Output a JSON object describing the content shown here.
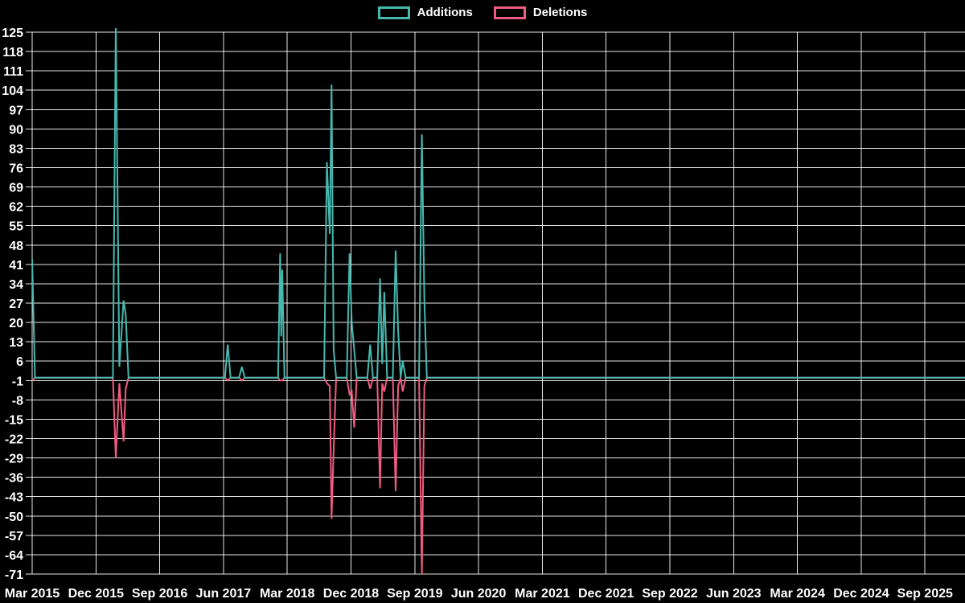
{
  "chart_data": {
    "type": "line",
    "title": "",
    "xlabel": "",
    "ylabel": "",
    "background_color": "#000000",
    "grid": true,
    "grid_color": "#ffffff",
    "text_color": "#ffffff",
    "legend_position": "top-center",
    "series": [
      {
        "name": "Additions",
        "key": "additions",
        "color": "#46b9af"
      },
      {
        "name": "Deletions",
        "key": "deletions",
        "color": "#f05c81"
      }
    ],
    "ylim": [
      -71,
      125
    ],
    "y_ticks": [
      125,
      118,
      111,
      104,
      97,
      90,
      83,
      76,
      69,
      62,
      55,
      48,
      41,
      34,
      27,
      20,
      13,
      6,
      -1,
      -8,
      -15,
      -22,
      -29,
      -36,
      -43,
      -50,
      -57,
      -64,
      -71
    ],
    "x_ticks": [
      "Mar 2015",
      "Dec 2015",
      "Sep 2016",
      "Jun 2017",
      "Mar 2018",
      "Dec 2018",
      "Sep 2019",
      "Jun 2020",
      "Mar 2021",
      "Dec 2021",
      "Sep 2022",
      "Jun 2023",
      "Mar 2024",
      "Dec 2024",
      "Sep 2025"
    ],
    "x_tick_step_months": 9,
    "x_range_months": 131.65,
    "x_unit": "months since Mar 2015",
    "points": [
      {
        "m": 0,
        "date": "Mar 2015",
        "additions": 43,
        "deletions": -1
      },
      {
        "m": 0.4,
        "additions": 0,
        "deletions": 0
      },
      {
        "m": 11.4,
        "additions": 0,
        "deletions": 0
      },
      {
        "m": 11.8,
        "date": "Feb 2016",
        "additions": 128,
        "deletions": -29
      },
      {
        "m": 12.3,
        "additions": 4,
        "deletions": -2
      },
      {
        "m": 12.9,
        "date": "Mar 2016",
        "additions": 28,
        "deletions": -23
      },
      {
        "m": 13.2,
        "additions": 23,
        "deletions": -4
      },
      {
        "m": 13.6,
        "additions": 0,
        "deletions": 0
      },
      {
        "m": 27.2,
        "additions": 0,
        "deletions": 0
      },
      {
        "m": 27.6,
        "date": "Jun 2017",
        "additions": 12,
        "deletions": -1
      },
      {
        "m": 28.0,
        "additions": 0,
        "deletions": 0
      },
      {
        "m": 29.2,
        "additions": 0,
        "deletions": 0
      },
      {
        "m": 29.6,
        "date": "Aug 2017",
        "additions": 4,
        "deletions": -1
      },
      {
        "m": 30.0,
        "additions": 0,
        "deletions": 0
      },
      {
        "m": 34.7,
        "additions": 0,
        "deletions": 0
      },
      {
        "m": 35.0,
        "date": "Feb 2018",
        "additions": 45,
        "deletions": -1
      },
      {
        "m": 35.15,
        "additions": 15,
        "deletions": -1
      },
      {
        "m": 35.3,
        "additions": 39,
        "deletions": -1
      },
      {
        "m": 35.6,
        "additions": 0,
        "deletions": 0
      },
      {
        "m": 41.2,
        "additions": 0,
        "deletions": 0
      },
      {
        "m": 41.6,
        "date": "Sep 2018",
        "additions": 78,
        "deletions": -2
      },
      {
        "m": 42.0,
        "additions": 52,
        "deletions": -3
      },
      {
        "m": 42.25,
        "date": "Oct 2018",
        "additions": 106,
        "deletions": -51
      },
      {
        "m": 42.55,
        "additions": 10,
        "deletions": -26
      },
      {
        "m": 42.9,
        "additions": 0,
        "deletions": 0
      },
      {
        "m": 44.4,
        "additions": 0,
        "deletions": 0
      },
      {
        "m": 44.8,
        "date": "Dec 2018",
        "additions": 45,
        "deletions": -6
      },
      {
        "m": 45.1,
        "additions": 20,
        "deletions": -5
      },
      {
        "m": 45.45,
        "additions": 10,
        "deletions": -18
      },
      {
        "m": 45.8,
        "additions": 0,
        "deletions": 0
      },
      {
        "m": 47.3,
        "additions": 0,
        "deletions": 0
      },
      {
        "m": 47.7,
        "date": "Feb 2019",
        "additions": 12,
        "deletions": -4
      },
      {
        "m": 48.1,
        "additions": 0,
        "deletions": 0
      },
      {
        "m": 48.7,
        "additions": 0,
        "deletions": 0
      },
      {
        "m": 49.1,
        "date": "Apr 2019",
        "additions": 36,
        "deletions": -40
      },
      {
        "m": 49.4,
        "additions": 5,
        "deletions": -2
      },
      {
        "m": 49.7,
        "date": "May 2019",
        "additions": 31,
        "deletions": -5
      },
      {
        "m": 50.1,
        "additions": 0,
        "deletions": 0
      },
      {
        "m": 50.9,
        "additions": 0,
        "deletions": 0
      },
      {
        "m": 51.3,
        "date": "Jun 2019",
        "additions": 46,
        "deletions": -41
      },
      {
        "m": 51.65,
        "additions": 17,
        "deletions": -3
      },
      {
        "m": 52.0,
        "additions": 0,
        "deletions": 0
      },
      {
        "m": 52.3,
        "date": "Jul 2019",
        "additions": 6,
        "deletions": -5
      },
      {
        "m": 52.7,
        "additions": 0,
        "deletions": 0
      },
      {
        "m": 54.6,
        "additions": 0,
        "deletions": 0
      },
      {
        "m": 55.0,
        "date": "Oct 2019",
        "additions": 88,
        "deletions": -71
      },
      {
        "m": 55.35,
        "additions": 28,
        "deletions": -3
      },
      {
        "m": 55.7,
        "additions": 0,
        "deletions": 0
      },
      {
        "m": 131.65,
        "additions": 0,
        "deletions": 0
      }
    ]
  }
}
